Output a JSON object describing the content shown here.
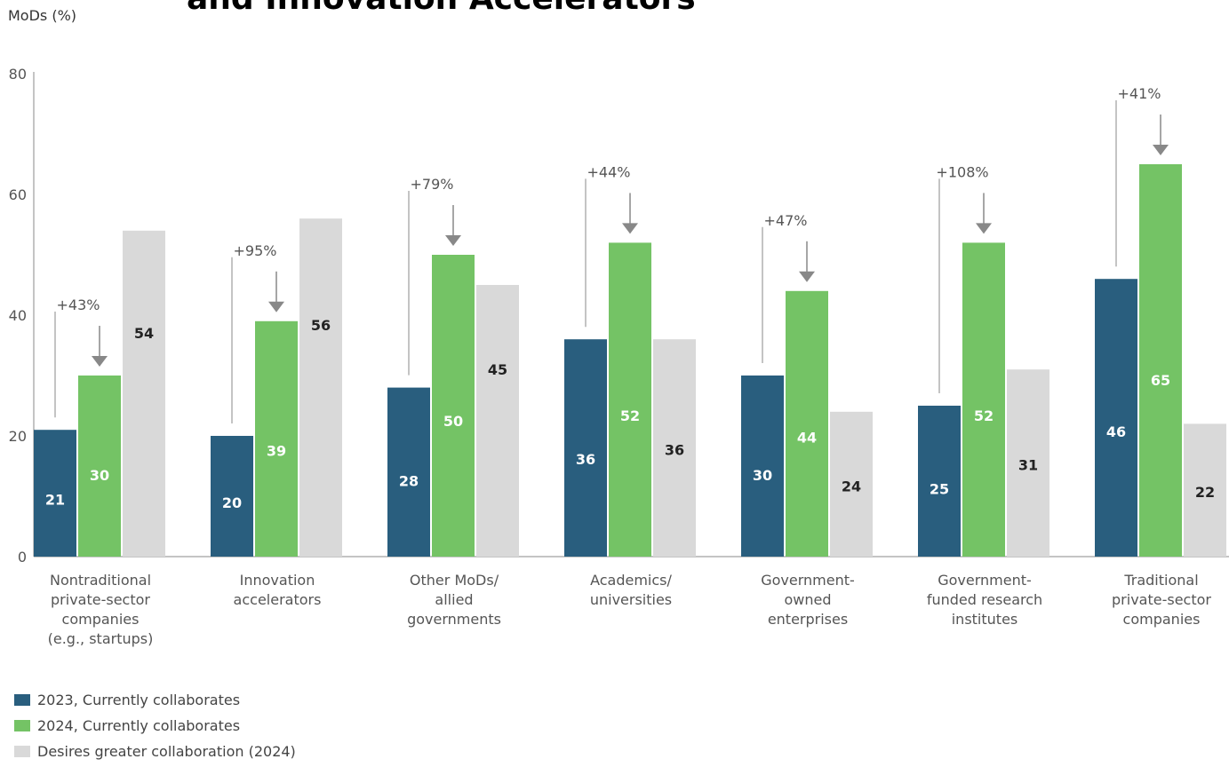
{
  "chart_data": {
    "type": "bar",
    "title": "and Innovation Accelerators",
    "ylabel": "MoDs (%)",
    "ylim": [
      0,
      80
    ],
    "yticks": [
      0,
      20,
      40,
      60,
      80
    ],
    "categories": [
      [
        "Nontraditional",
        "private-sector",
        "companies",
        "(e.g., startups)"
      ],
      [
        "Innovation",
        "accelerators"
      ],
      [
        "Other MoDs/",
        "allied",
        "governments"
      ],
      [
        "Academics/",
        "universities"
      ],
      [
        "Government-",
        "owned",
        "enterprises"
      ],
      [
        "Government-",
        "funded research",
        "institutes"
      ],
      [
        "Traditional",
        "private-sector",
        "companies"
      ]
    ],
    "series": [
      {
        "name": "2023, Currently collaborates",
        "color": "#295e7e",
        "label_color": "#ffffff",
        "values": [
          21,
          20,
          28,
          36,
          30,
          25,
          46
        ]
      },
      {
        "name": "2024, Currently collaborates",
        "color": "#74c365",
        "label_color": "#ffffff",
        "values": [
          30,
          39,
          50,
          52,
          44,
          52,
          65
        ]
      },
      {
        "name": "Desires greater collaboration (2024)",
        "color": "#d9d9d9",
        "label_color": "#222222",
        "values": [
          54,
          56,
          45,
          36,
          24,
          31,
          22
        ]
      }
    ],
    "changes": [
      "+43%",
      "+95%",
      "+79%",
      "+44%",
      "+47%",
      "+108%",
      "+41%"
    ],
    "legend_position": "bottom-left",
    "grid": false
  }
}
